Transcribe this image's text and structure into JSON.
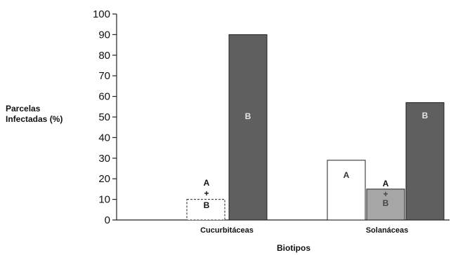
{
  "chart_data": {
    "type": "bar",
    "ylabel_line1": "Parcelas",
    "ylabel_line2": "Infectadas (%)",
    "xlabel": "Biotipos",
    "ylim": [
      0,
      100
    ],
    "yticks": [
      0,
      10,
      20,
      30,
      40,
      50,
      60,
      70,
      80,
      90,
      100
    ],
    "grid": false,
    "legend": "none",
    "categories": [
      "Cucurbitáceas",
      "Solanáceas"
    ],
    "series": [
      {
        "label": "A",
        "color": "#ffffff",
        "label_color": "#333333",
        "values": [
          0,
          29
        ]
      },
      {
        "label": "A + B",
        "color": "#ffffff",
        "label_color": "#111111",
        "values": [
          10,
          15
        ]
      },
      {
        "label": "B",
        "color": "#5f5f5f",
        "label_color": "#e6e6e6",
        "values": [
          90,
          57
        ]
      }
    ],
    "bar_labels": {
      "cucurbitaceas_mixed_top": "A",
      "cucurbitaceas_mixed_plus": "+",
      "cucurbitaceas_mixed_bottom": "B",
      "cucurbitaceas_b": "B",
      "solanaceas_a": "A",
      "solanaceas_mixed_top": "A",
      "solanaceas_mixed_plus": "+",
      "solanaceas_mixed_bottom": "B",
      "solanaceas_b": "B"
    },
    "bar_colors": {
      "solanaceas_mixed": "#a6a6a6"
    }
  }
}
